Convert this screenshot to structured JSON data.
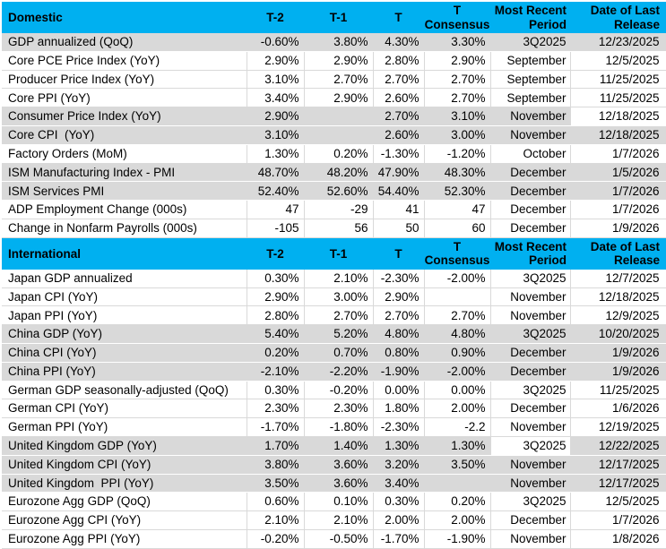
{
  "colors": {
    "header_bg": "#00B0F0",
    "row_shade": "#D9D9D9",
    "row_plain": "#FFFFFF",
    "grid_line": "#D9D9D9",
    "text": "#000000"
  },
  "columns": [
    {
      "id": "t2",
      "label": "T-2",
      "lines": [
        "T-2"
      ]
    },
    {
      "id": "t1",
      "label": "T-1",
      "lines": [
        "T-1"
      ]
    },
    {
      "id": "t",
      "label": "T",
      "lines": [
        "T"
      ]
    },
    {
      "id": "consensus",
      "label": "T Consensus",
      "lines": [
        "T",
        "Consensus"
      ]
    },
    {
      "id": "period",
      "label": "Most Recent Period",
      "lines": [
        "Most Recent",
        "Period"
      ]
    },
    {
      "id": "date",
      "label": "Date of Last Release",
      "lines": [
        "Date of Last",
        "Release"
      ]
    }
  ],
  "sections": [
    {
      "title": "Domestic",
      "rows": [
        {
          "label": "GDP annualized (QoQ)",
          "t2": "-0.60%",
          "t1": "3.80%",
          "t": "4.30%",
          "consensus": "3.30%",
          "period": "3Q2025",
          "date": "12/23/2025",
          "shade": "gray"
        },
        {
          "label": "Core PCE Price Index (YoY)",
          "t2": "2.90%",
          "t1": "2.90%",
          "t": "2.80%",
          "consensus": "2.90%",
          "period": "September",
          "date": "12/5/2025",
          "shade": "white"
        },
        {
          "label": "Producer Price Index (YoY)",
          "t2": "3.10%",
          "t1": "2.70%",
          "t": "2.70%",
          "consensus": "2.70%",
          "period": "September",
          "date": "11/25/2025",
          "shade": "white"
        },
        {
          "label": "Core PPI (YoY)",
          "t2": "3.40%",
          "t1": "2.90%",
          "t": "2.60%",
          "consensus": "2.70%",
          "period": "September",
          "date": "11/25/2025",
          "shade": "white"
        },
        {
          "label": "Consumer Price Index (YoY)",
          "t2": "2.90%",
          "t1": "",
          "t": "2.70%",
          "consensus": "3.10%",
          "period": "November",
          "date": "12/18/2025",
          "shade": "gray",
          "white_cells": [
            "date"
          ]
        },
        {
          "label": "Core CPI  (YoY)",
          "t2": "3.10%",
          "t1": "",
          "t": "2.60%",
          "consensus": "3.00%",
          "period": "November",
          "date": "12/18/2025",
          "shade": "gray"
        },
        {
          "label": "Factory Orders (MoM)",
          "t2": "1.30%",
          "t1": "0.20%",
          "t": "-1.30%",
          "consensus": "-1.20%",
          "period": "October",
          "date": "1/7/2026",
          "shade": "white"
        },
        {
          "label": "ISM Manufacturing Index - PMI",
          "t2": "48.70%",
          "t1": "48.20%",
          "t": "47.90%",
          "consensus": "48.30%",
          "period": "December",
          "date": "1/5/2026",
          "shade": "gray"
        },
        {
          "label": "ISM Services PMI",
          "t2": "52.40%",
          "t1": "52.60%",
          "t": "54.40%",
          "consensus": "52.30%",
          "period": "December",
          "date": "1/7/2026",
          "shade": "gray"
        },
        {
          "label": "ADP Employment Change (000s)",
          "t2": "47",
          "t1": "-29",
          "t": "41",
          "consensus": "47",
          "period": "December",
          "date": "1/7/2026",
          "shade": "white"
        },
        {
          "label": "Change in Nonfarm Payrolls (000s)",
          "t2": "-105",
          "t1": "56",
          "t": "50",
          "consensus": "60",
          "period": "December",
          "date": "1/9/2026",
          "shade": "white"
        }
      ]
    },
    {
      "title": "International",
      "rows": [
        {
          "label": "Japan GDP annualized",
          "t2": "0.30%",
          "t1": "2.10%",
          "t": "-2.30%",
          "consensus": "-2.00%",
          "period": "3Q2025",
          "date": "12/7/2025",
          "shade": "white"
        },
        {
          "label": "Japan CPI (YoY)",
          "t2": "2.90%",
          "t1": "3.00%",
          "t": "2.90%",
          "consensus": "",
          "period": "November",
          "date": "12/18/2025",
          "shade": "white"
        },
        {
          "label": "Japan PPI (YoY)",
          "t2": "2.80%",
          "t1": "2.70%",
          "t": "2.70%",
          "consensus": "2.70%",
          "period": "November",
          "date": "12/9/2025",
          "shade": "white"
        },
        {
          "label": "China GDP (YoY)",
          "t2": "5.40%",
          "t1": "5.20%",
          "t": "4.80%",
          "consensus": "4.80%",
          "period": "3Q2025",
          "date": "10/20/2025",
          "shade": "gray"
        },
        {
          "label": "China CPI (YoY)",
          "t2": "0.20%",
          "t1": "0.70%",
          "t": "0.80%",
          "consensus": "0.90%",
          "period": "December",
          "date": "1/9/2026",
          "shade": "gray"
        },
        {
          "label": "China PPI (YoY)",
          "t2": "-2.10%",
          "t1": "-2.20%",
          "t": "-1.90%",
          "consensus": "-2.00%",
          "period": "December",
          "date": "1/9/2026",
          "shade": "gray"
        },
        {
          "label": "German GDP seasonally-adjusted (QoQ)",
          "t2": "0.30%",
          "t1": "-0.20%",
          "t": "0.00%",
          "consensus": "0.00%",
          "period": "3Q2025",
          "date": "11/25/2025",
          "shade": "white"
        },
        {
          "label": "German CPI (YoY)",
          "t2": "2.30%",
          "t1": "2.30%",
          "t": "1.80%",
          "consensus": "2.00%",
          "period": "December",
          "date": "1/6/2026",
          "shade": "white"
        },
        {
          "label": "German PPI (YoY)",
          "t2": "-1.70%",
          "t1": "-1.80%",
          "t": "-2.30%",
          "consensus": "-2.2",
          "period": "November",
          "date": "12/19/2025",
          "shade": "white"
        },
        {
          "label": "United Kingdom GDP (YoY)",
          "t2": "1.70%",
          "t1": "1.40%",
          "t": "1.30%",
          "consensus": "1.30%",
          "period": "3Q2025",
          "date": "12/22/2025",
          "shade": "gray",
          "white_cells": [
            "period"
          ]
        },
        {
          "label": "United Kingdom CPI (YoY)",
          "t2": "3.80%",
          "t1": "3.60%",
          "t": "3.20%",
          "consensus": "3.50%",
          "period": "November",
          "date": "12/17/2025",
          "shade": "gray"
        },
        {
          "label": "United Kingdom  PPI (YoY)",
          "t2": "3.50%",
          "t1": "3.60%",
          "t": "3.40%",
          "consensus": "",
          "period": "November",
          "date": "12/17/2025",
          "shade": "gray"
        },
        {
          "label": "Eurozone Agg GDP (QoQ)",
          "t2": "0.60%",
          "t1": "0.10%",
          "t": "0.30%",
          "consensus": "0.20%",
          "period": "3Q2025",
          "date": "12/5/2025",
          "shade": "white"
        },
        {
          "label": "Eurozone Agg CPI (YoY)",
          "t2": "2.10%",
          "t1": "2.10%",
          "t": "2.00%",
          "consensus": "2.00%",
          "period": "December",
          "date": "1/7/2026",
          "shade": "white"
        },
        {
          "label": "Eurozone Agg PPI (YoY)",
          "t2": "-0.20%",
          "t1": "-0.50%",
          "t": "-1.70%",
          "consensus": "-1.90%",
          "period": "November",
          "date": "1/8/2026",
          "shade": "white"
        }
      ]
    }
  ]
}
